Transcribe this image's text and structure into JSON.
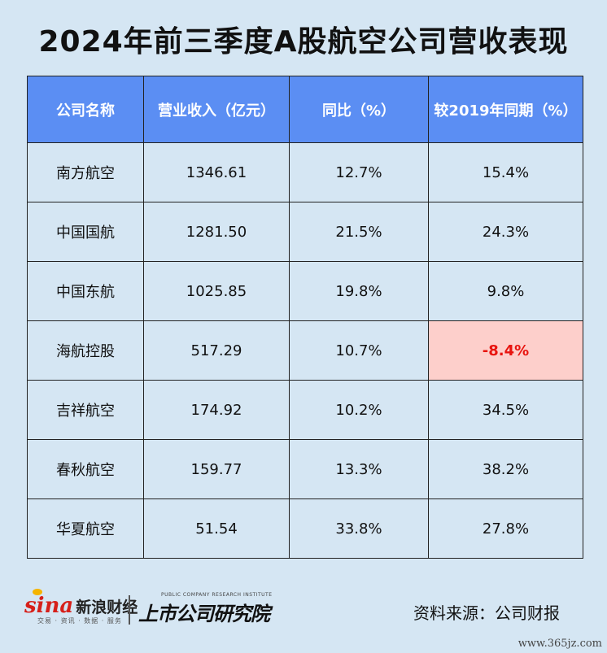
{
  "title": "2024年前三季度A股航空公司营收表现",
  "chart_data": {
    "type": "table",
    "columns": [
      "公司名称",
      "营业收入（亿元）",
      "同比（%）",
      "较2019年同期（%）"
    ],
    "rows": [
      [
        "南方航空",
        "1346.61",
        "12.7%",
        "15.4%"
      ],
      [
        "中国国航",
        "1281.50",
        "21.5%",
        "24.3%"
      ],
      [
        "中国东航",
        "1025.85",
        "19.8%",
        "9.8%"
      ],
      [
        "海航控股",
        "517.29",
        "10.7%",
        "-8.4%"
      ],
      [
        "吉祥航空",
        "174.92",
        "10.2%",
        "34.5%"
      ],
      [
        "春秋航空",
        "159.77",
        "13.3%",
        "38.2%"
      ],
      [
        "华夏航空",
        "51.54",
        "33.8%",
        "27.8%"
      ]
    ],
    "highlight": {
      "row": 3,
      "col": 3,
      "bg": "#fdcfcb",
      "text": "#e8140f"
    },
    "header_color": "#5b8ef3"
  },
  "footer": {
    "sina_mark": "sina",
    "sina_cn": "新浪财经",
    "sina_sub": "交易 · 资讯 · 数据 · 服务",
    "institute_en": "PUBLIC COMPANY RESEARCH INSTITUTE",
    "institute_cn": "上市公司研究院",
    "source": "资料来源：公司财报",
    "watermark": "www.365jz.com"
  }
}
